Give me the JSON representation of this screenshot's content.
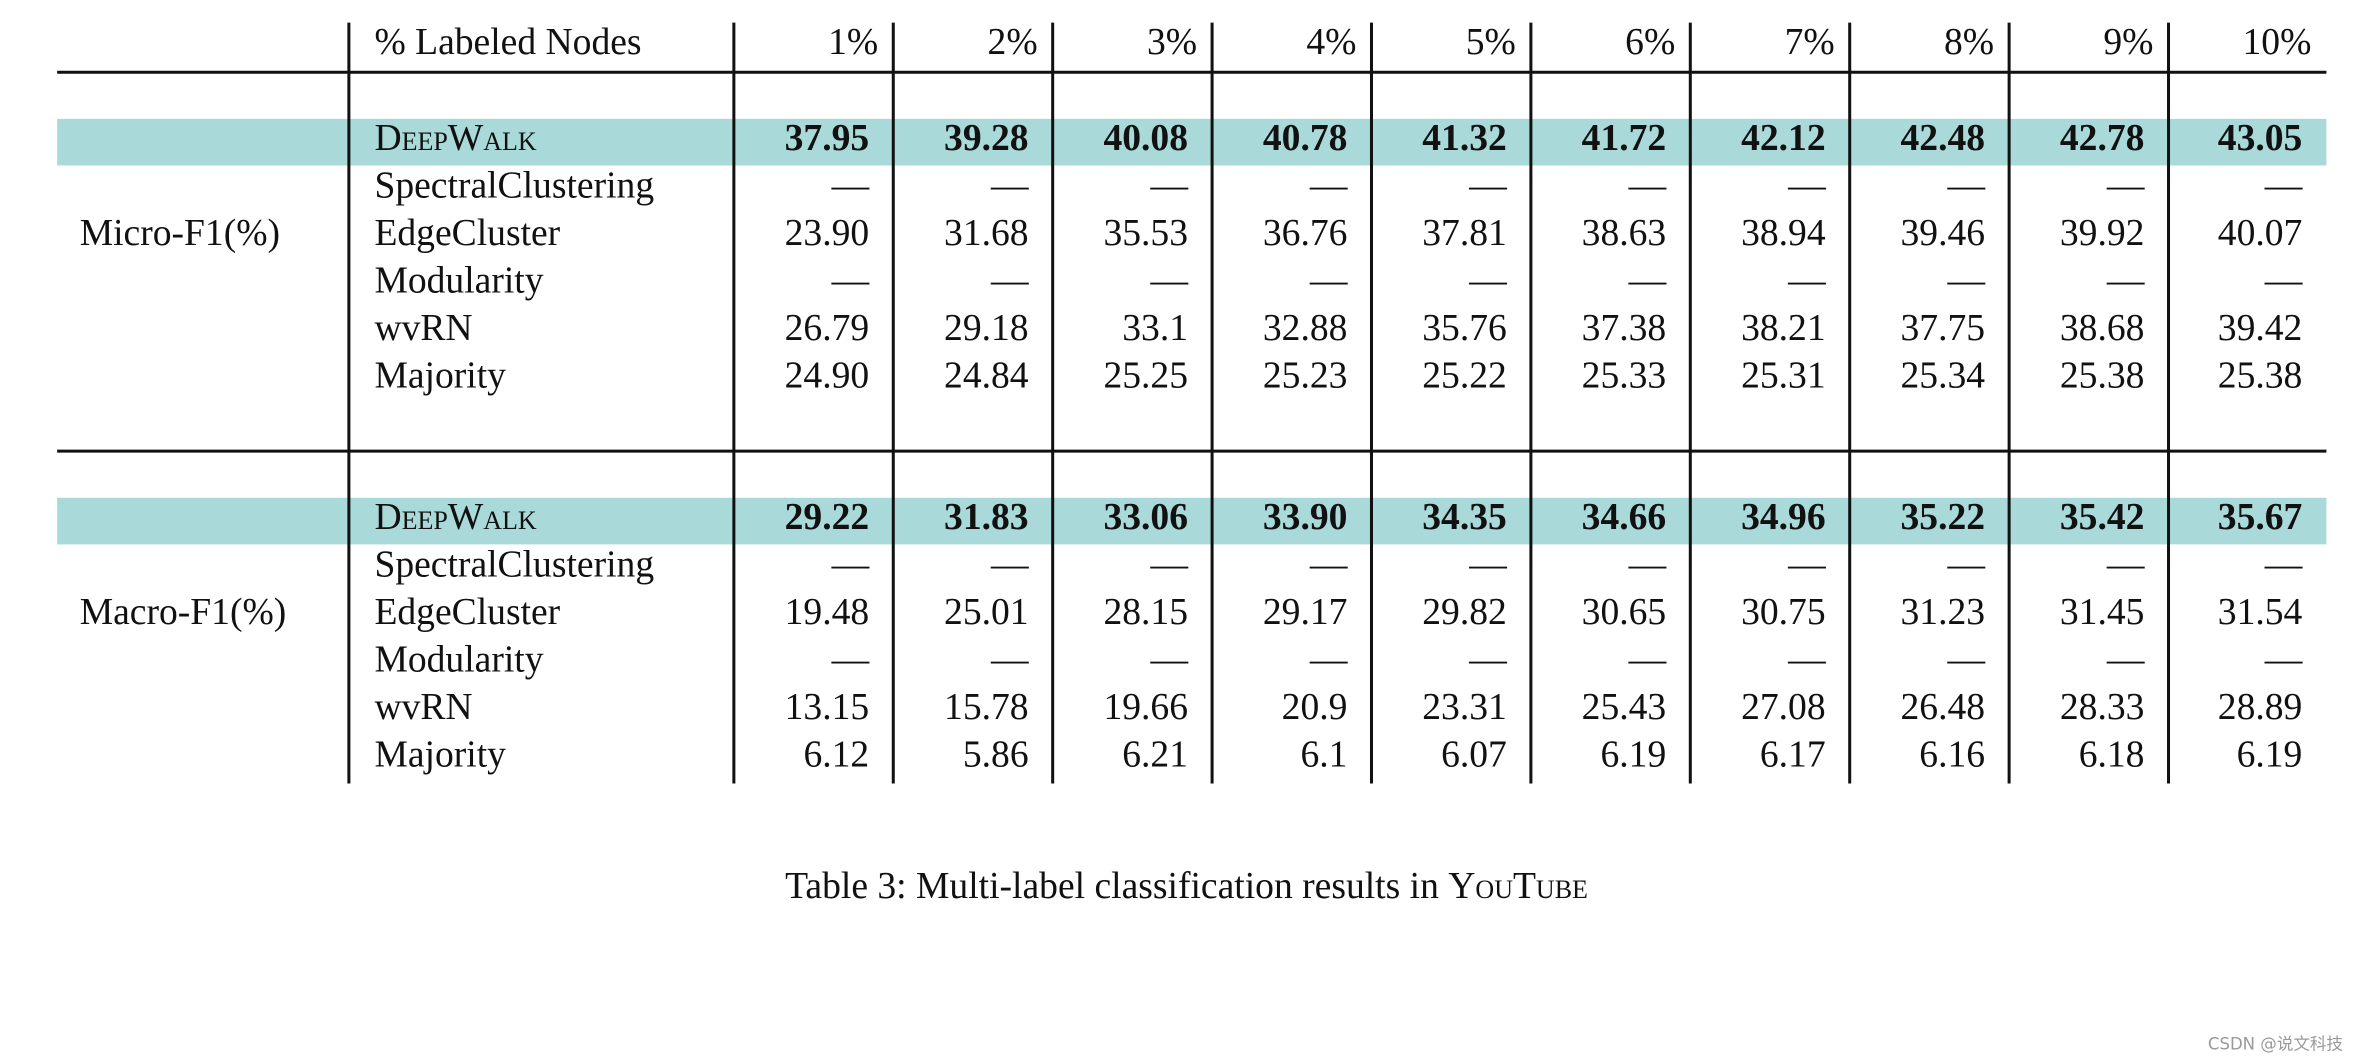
{
  "table": {
    "header": [
      "% Labeled Nodes",
      "1%",
      "2%",
      "3%",
      "4%",
      "5%",
      "6%",
      "7%",
      "8%",
      "9%",
      "10%"
    ],
    "groups": [
      {
        "label": "Micro-F1(%)",
        "rows": [
          [
            "DeepWalk",
            "37.95",
            "39.28",
            "40.08",
            "40.78",
            "41.32",
            "41.72",
            "42.12",
            "42.48",
            "42.78",
            "43.05"
          ],
          [
            "SpectralClustering",
            "—",
            "—",
            "—",
            "—",
            "—",
            "—",
            "—",
            "—",
            "—",
            "—"
          ],
          [
            "EdgeCluster",
            "23.90",
            "31.68",
            "35.53",
            "36.76",
            "37.81",
            "38.63",
            "38.94",
            "39.46",
            "39.92",
            "40.07"
          ],
          [
            "Modularity",
            "—",
            "—",
            "—",
            "—",
            "—",
            "—",
            "—",
            "—",
            "—",
            "—"
          ],
          [
            "wvRN",
            "26.79",
            "29.18",
            "33.1",
            "32.88",
            "35.76",
            "37.38",
            "38.21",
            "37.75",
            "38.68",
            "39.42"
          ],
          [
            "Majority",
            "24.90",
            "24.84",
            "25.25",
            "25.23",
            "25.22",
            "25.33",
            "25.31",
            "25.34",
            "25.38",
            "25.38"
          ]
        ]
      },
      {
        "label": "Macro-F1(%)",
        "rows": [
          [
            "DeepWalk",
            "29.22",
            "31.83",
            "33.06",
            "33.90",
            "34.35",
            "34.66",
            "34.96",
            "35.22",
            "35.42",
            "35.67"
          ],
          [
            "SpectralClustering",
            "—",
            "—",
            "—",
            "—",
            "—",
            "—",
            "—",
            "—",
            "—",
            "—"
          ],
          [
            "EdgeCluster",
            "19.48",
            "25.01",
            "28.15",
            "29.17",
            "29.82",
            "30.65",
            "30.75",
            "31.23",
            "31.45",
            "31.54"
          ],
          [
            "Modularity",
            "—",
            "—",
            "—",
            "—",
            "—",
            "—",
            "—",
            "—",
            "—",
            "—"
          ],
          [
            "wvRN",
            "13.15",
            "15.78",
            "19.66",
            "20.9",
            "23.31",
            "25.43",
            "27.08",
            "26.48",
            "28.33",
            "28.89"
          ],
          [
            "Majority",
            "6.12",
            "5.86",
            "6.21",
            "6.1",
            "6.07",
            "6.19",
            "6.17",
            "6.16",
            "6.18",
            "6.19"
          ]
        ]
      }
    ]
  },
  "caption": {
    "text": "Table 3: Multi-label classification results in",
    "name": "YouTube"
  },
  "watermark": "CSDN @说文科技"
}
